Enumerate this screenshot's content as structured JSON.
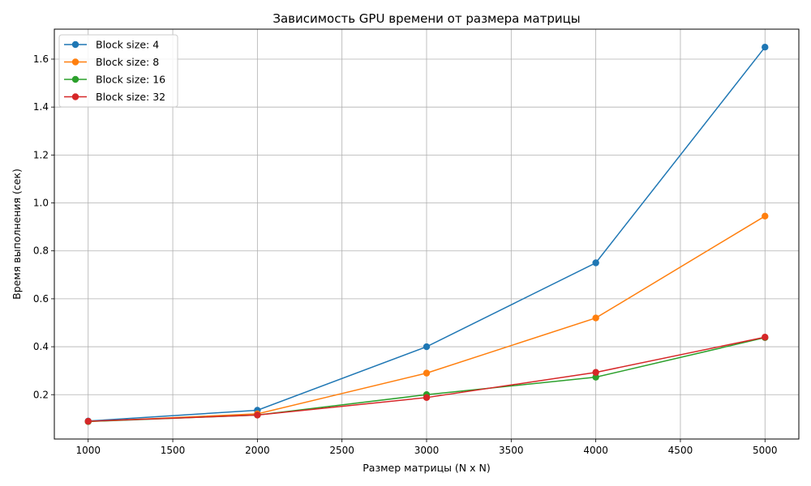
{
  "chart_data": {
    "type": "line",
    "title": "Зависимость GPU времени от размера матрицы",
    "xlabel": "Размер матрицы (N x N)",
    "ylabel": "Время выполнения (сек)",
    "xlim": [
      800,
      5200
    ],
    "ylim": [
      0.015,
      1.725
    ],
    "xticks": [
      1000,
      1500,
      2000,
      2500,
      3000,
      3500,
      4000,
      4500,
      5000
    ],
    "yticks": [
      0.2,
      0.4,
      0.6,
      0.8,
      1.0,
      1.2,
      1.4,
      1.6
    ],
    "grid": true,
    "legend": "top-left",
    "x": [
      1000,
      2000,
      3000,
      4000,
      5000
    ],
    "series": [
      {
        "name": "Block size: 4",
        "color": "#1f77b4",
        "values": [
          0.09,
          0.135,
          0.4,
          0.75,
          1.65
        ]
      },
      {
        "name": "Block size: 8",
        "color": "#ff7f0e",
        "values": [
          0.088,
          0.12,
          0.29,
          0.52,
          0.945
        ]
      },
      {
        "name": "Block size: 16",
        "color": "#2ca02c",
        "values": [
          0.088,
          0.115,
          0.2,
          0.273,
          0.438
        ]
      },
      {
        "name": "Block size: 32",
        "color": "#d62728",
        "values": [
          0.089,
          0.115,
          0.188,
          0.293,
          0.44
        ]
      }
    ]
  }
}
